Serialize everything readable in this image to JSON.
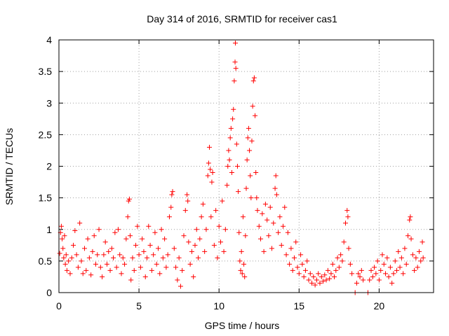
{
  "chart_data": {
    "type": "scatter",
    "title": "Day 314 of 2016, SRMTID for receiver cas1",
    "xlabel": "GPS time / hours",
    "ylabel": "SRMTID / TECUs",
    "xlim": [
      0,
      23.4
    ],
    "ylim": [
      0,
      4
    ],
    "xticks": [
      0,
      5,
      10,
      15,
      20
    ],
    "xtick_labels": [
      "0",
      "5",
      "10",
      "15",
      "20"
    ],
    "yticks": [
      0,
      0.5,
      1,
      1.5,
      2,
      2.5,
      3,
      3.5,
      4
    ],
    "ytick_labels": [
      "0",
      "0.5",
      "1",
      "1.5",
      "2",
      "2.5",
      "3",
      "3.5",
      "4"
    ],
    "grid": true,
    "marker": "+",
    "color": "#ff0000",
    "series": [
      {
        "name": "cas1",
        "points": [
          [
            0.05,
            0.62
          ],
          [
            0.1,
            0.95
          ],
          [
            0.15,
            1.05
          ],
          [
            0.2,
            0.85
          ],
          [
            0.25,
            0.7
          ],
          [
            0.3,
            0.55
          ],
          [
            0.35,
            0.9
          ],
          [
            0.4,
            0.45
          ],
          [
            0.45,
            0.6
          ],
          [
            0.5,
            0.35
          ],
          [
            0.6,
            0.5
          ],
          [
            0.7,
            0.3
          ],
          [
            0.8,
            0.55
          ],
          [
            0.9,
            0.75
          ],
          [
            1.0,
            0.98
          ],
          [
            1.1,
            0.6
          ],
          [
            1.2,
            0.4
          ],
          [
            1.3,
            1.1
          ],
          [
            1.4,
            0.5
          ],
          [
            1.5,
            0.3
          ],
          [
            1.6,
            0.7
          ],
          [
            1.7,
            0.35
          ],
          [
            1.8,
            0.85
          ],
          [
            1.9,
            0.55
          ],
          [
            2.0,
            0.28
          ],
          [
            2.1,
            0.65
          ],
          [
            2.2,
            0.9
          ],
          [
            2.3,
            0.45
          ],
          [
            2.4,
            0.6
          ],
          [
            2.5,
            1.0
          ],
          [
            2.6,
            0.4
          ],
          [
            2.7,
            0.25
          ],
          [
            2.8,
            0.6
          ],
          [
            2.9,
            0.8
          ],
          [
            3.0,
            0.45
          ],
          [
            3.1,
            0.65
          ],
          [
            3.2,
            0.35
          ],
          [
            3.3,
            0.7
          ],
          [
            3.4,
            0.55
          ],
          [
            3.5,
            0.95
          ],
          [
            3.6,
            0.4
          ],
          [
            3.7,
            1.0
          ],
          [
            3.8,
            0.6
          ],
          [
            3.9,
            0.3
          ],
          [
            4.0,
            0.55
          ],
          [
            4.1,
            0.45
          ],
          [
            4.2,
            0.85
          ],
          [
            4.3,
            1.2
          ],
          [
            4.35,
            1.45
          ],
          [
            4.4,
            1.48
          ],
          [
            4.45,
            0.9
          ],
          [
            4.5,
            0.2
          ],
          [
            4.6,
            0.55
          ],
          [
            4.7,
            0.35
          ],
          [
            4.8,
            0.75
          ],
          [
            4.9,
            1.05
          ],
          [
            5.0,
            0.6
          ],
          [
            5.1,
            0.4
          ],
          [
            5.2,
            0.85
          ],
          [
            5.3,
            0.65
          ],
          [
            5.4,
            0.25
          ],
          [
            5.5,
            0.55
          ],
          [
            5.6,
            1.05
          ],
          [
            5.7,
            0.75
          ],
          [
            5.8,
            0.35
          ],
          [
            5.9,
            0.6
          ],
          [
            6.0,
            0.95
          ],
          [
            6.1,
            0.45
          ],
          [
            6.2,
            0.7
          ],
          [
            6.3,
            0.3
          ],
          [
            6.4,
            1.0
          ],
          [
            6.5,
            0.55
          ],
          [
            6.6,
            0.85
          ],
          [
            6.7,
            0.4
          ],
          [
            6.8,
            0.6
          ],
          [
            6.9,
            1.2
          ],
          [
            7.0,
            1.35
          ],
          [
            7.05,
            1.55
          ],
          [
            7.1,
            1.6
          ],
          [
            7.2,
            0.7
          ],
          [
            7.3,
            0.4
          ],
          [
            7.4,
            0.2
          ],
          [
            7.5,
            0.55
          ],
          [
            7.6,
            0.1
          ],
          [
            7.7,
            0.35
          ],
          [
            7.8,
            0.9
          ],
          [
            7.9,
            1.3
          ],
          [
            8.0,
            1.55
          ],
          [
            8.05,
            1.45
          ],
          [
            8.1,
            0.8
          ],
          [
            8.2,
            0.45
          ],
          [
            8.3,
            0.65
          ],
          [
            8.4,
            0.25
          ],
          [
            8.5,
            0.75
          ],
          [
            8.6,
            1.0
          ],
          [
            8.7,
            0.55
          ],
          [
            8.8,
            0.85
          ],
          [
            8.9,
            1.2
          ],
          [
            9.0,
            1.4
          ],
          [
            9.1,
            0.65
          ],
          [
            9.2,
            1.0
          ],
          [
            9.3,
            1.85
          ],
          [
            9.35,
            2.05
          ],
          [
            9.4,
            2.3
          ],
          [
            9.45,
            1.95
          ],
          [
            9.5,
            1.2
          ],
          [
            9.55,
            1.75
          ],
          [
            9.6,
            1.9
          ],
          [
            9.7,
            0.75
          ],
          [
            9.8,
            1.3
          ],
          [
            9.9,
            0.55
          ],
          [
            10.0,
            1.05
          ],
          [
            10.1,
            0.8
          ],
          [
            10.2,
            1.45
          ],
          [
            10.3,
            0.65
          ],
          [
            10.4,
            1.0
          ],
          [
            10.5,
            1.7
          ],
          [
            10.55,
            2.0
          ],
          [
            10.6,
            2.25
          ],
          [
            10.65,
            2.1
          ],
          [
            10.7,
            2.45
          ],
          [
            10.75,
            2.6
          ],
          [
            10.8,
            1.9
          ],
          [
            10.85,
            2.75
          ],
          [
            10.9,
            2.9
          ],
          [
            10.95,
            3.35
          ],
          [
            11.0,
            3.65
          ],
          [
            11.02,
            3.95
          ],
          [
            11.05,
            3.55
          ],
          [
            11.1,
            2.35
          ],
          [
            11.15,
            2.0
          ],
          [
            11.2,
            1.6
          ],
          [
            11.25,
            0.95
          ],
          [
            11.3,
            0.5
          ],
          [
            11.35,
            0.35
          ],
          [
            11.4,
            0.65
          ],
          [
            11.45,
            0.3
          ],
          [
            11.5,
            1.2
          ],
          [
            11.55,
            0.45
          ],
          [
            11.6,
            0.25
          ],
          [
            11.65,
            0.9
          ],
          [
            11.7,
            1.65
          ],
          [
            11.75,
            2.1
          ],
          [
            11.8,
            2.45
          ],
          [
            11.85,
            2.6
          ],
          [
            11.9,
            2.25
          ],
          [
            11.95,
            1.85
          ],
          [
            12.0,
            1.5
          ],
          [
            12.05,
            2.4
          ],
          [
            12.1,
            2.95
          ],
          [
            12.15,
            3.35
          ],
          [
            12.2,
            3.4
          ],
          [
            12.25,
            2.8
          ],
          [
            12.3,
            1.9
          ],
          [
            12.35,
            1.5
          ],
          [
            12.4,
            1.3
          ],
          [
            12.5,
            1.05
          ],
          [
            12.6,
            0.85
          ],
          [
            12.7,
            1.25
          ],
          [
            12.8,
            0.65
          ],
          [
            12.9,
            1.4
          ],
          [
            13.0,
            1.15
          ],
          [
            13.1,
            0.9
          ],
          [
            13.2,
            1.35
          ],
          [
            13.3,
            0.7
          ],
          [
            13.4,
            1.1
          ],
          [
            13.5,
            1.65
          ],
          [
            13.55,
            1.85
          ],
          [
            13.6,
            1.55
          ],
          [
            13.7,
            0.95
          ],
          [
            13.8,
            1.2
          ],
          [
            13.9,
            0.75
          ],
          [
            14.0,
            1.05
          ],
          [
            14.1,
            1.35
          ],
          [
            14.2,
            0.6
          ],
          [
            14.3,
            0.95
          ],
          [
            14.4,
            0.45
          ],
          [
            14.5,
            0.7
          ],
          [
            14.6,
            0.35
          ],
          [
            14.7,
            0.55
          ],
          [
            14.8,
            0.8
          ],
          [
            14.9,
            0.4
          ],
          [
            15.0,
            0.3
          ],
          [
            15.1,
            0.6
          ],
          [
            15.2,
            0.45
          ],
          [
            15.3,
            0.25
          ],
          [
            15.4,
            0.35
          ],
          [
            15.5,
            0.5
          ],
          [
            15.6,
            0.2
          ],
          [
            15.7,
            0.3
          ],
          [
            15.8,
            0.15
          ],
          [
            15.9,
            0.25
          ],
          [
            16.0,
            0.12
          ],
          [
            16.1,
            0.2
          ],
          [
            16.2,
            0.3
          ],
          [
            16.3,
            0.15
          ],
          [
            16.4,
            0.25
          ],
          [
            16.5,
            0.18
          ],
          [
            16.6,
            0.28
          ],
          [
            16.7,
            0.2
          ],
          [
            16.8,
            0.35
          ],
          [
            16.9,
            0.22
          ],
          [
            17.0,
            0.3
          ],
          [
            17.1,
            0.45
          ],
          [
            17.2,
            0.25
          ],
          [
            17.3,
            0.35
          ],
          [
            17.4,
            0.55
          ],
          [
            17.5,
            0.4
          ],
          [
            17.6,
            0.6
          ],
          [
            17.7,
            0.5
          ],
          [
            17.8,
            0.8
          ],
          [
            17.9,
            1.1
          ],
          [
            18.0,
            1.3
          ],
          [
            18.05,
            1.2
          ],
          [
            18.1,
            0.7
          ],
          [
            18.2,
            0.45
          ],
          [
            18.3,
            0.3
          ],
          [
            18.5,
            0.0
          ],
          [
            18.6,
            0.15
          ],
          [
            18.7,
            0.3
          ],
          [
            18.8,
            0.25
          ],
          [
            18.9,
            0.35
          ],
          [
            19.0,
            0.2
          ],
          [
            19.3,
            0.0
          ],
          [
            19.4,
            0.2
          ],
          [
            19.5,
            0.35
          ],
          [
            19.6,
            0.25
          ],
          [
            19.7,
            0.4
          ],
          [
            19.8,
            0.3
          ],
          [
            19.9,
            0.5
          ],
          [
            20.0,
            0.2
          ],
          [
            20.1,
            0.35
          ],
          [
            20.2,
            0.6
          ],
          [
            20.3,
            0.45
          ],
          [
            20.4,
            0.3
          ],
          [
            20.5,
            0.55
          ],
          [
            20.6,
            0.25
          ],
          [
            20.7,
            0.4
          ],
          [
            20.8,
            0.15
          ],
          [
            20.9,
            0.3
          ],
          [
            21.0,
            0.5
          ],
          [
            21.1,
            0.35
          ],
          [
            21.2,
            0.65
          ],
          [
            21.3,
            0.4
          ],
          [
            21.4,
            0.55
          ],
          [
            21.5,
            0.3
          ],
          [
            21.6,
            0.7
          ],
          [
            21.7,
            0.45
          ],
          [
            21.8,
            0.9
          ],
          [
            21.9,
            1.15
          ],
          [
            21.95,
            1.2
          ],
          [
            22.0,
            0.85
          ],
          [
            22.1,
            0.6
          ],
          [
            22.2,
            0.35
          ],
          [
            22.3,
            0.55
          ],
          [
            22.4,
            0.4
          ],
          [
            22.5,
            0.65
          ],
          [
            22.6,
            0.5
          ],
          [
            22.7,
            0.8
          ],
          [
            22.75,
            0.55
          ]
        ]
      }
    ]
  }
}
